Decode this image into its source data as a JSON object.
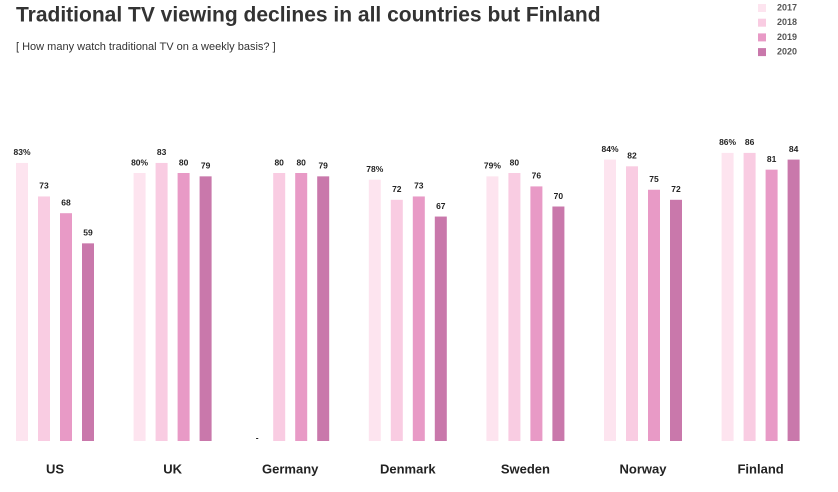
{
  "chart_data": {
    "type": "bar",
    "title": "Traditional TV viewing declines in all countries but Finland",
    "subtitle": "[ How many watch traditional TV on a weekly basis? ]",
    "categories": [
      "US",
      "UK",
      "Germany",
      "Denmark",
      "Sweden",
      "Norway",
      "Finland"
    ],
    "ylim": [
      0,
      100
    ],
    "legend": "top-right",
    "series": [
      {
        "name": "2017",
        "color": "#fde4ef",
        "values": [
          83,
          80,
          null,
          78,
          79,
          84,
          86
        ],
        "value_labels": [
          "83%",
          "80%",
          "-",
          "78%",
          "79%",
          "84%",
          "86%"
        ]
      },
      {
        "name": "2018",
        "color": "#f9cce2",
        "values": [
          73,
          83,
          80,
          72,
          80,
          82,
          86
        ]
      },
      {
        "name": "2019",
        "color": "#e89ac6",
        "values": [
          68,
          80,
          80,
          73,
          76,
          75,
          81
        ]
      },
      {
        "name": "2020",
        "color": "#c978ab",
        "values": [
          59,
          79,
          79,
          67,
          70,
          72,
          84
        ]
      }
    ]
  }
}
